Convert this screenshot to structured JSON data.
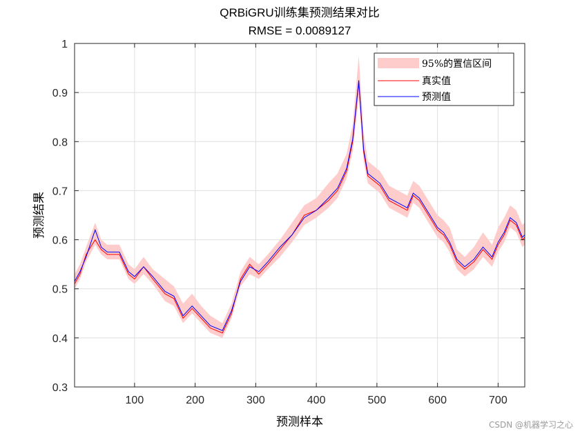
{
  "figure": {
    "title": "QRBiGRU训练集预测结果对比",
    "subtitle": "RMSE = 0.0089127",
    "watermark": "CSDN @机器学习之心"
  },
  "colors": {
    "band": "#ffcccc",
    "truth": "#ff0000",
    "pred": "#0000ff",
    "grid": "#dfdfdf",
    "axis": "#262626"
  },
  "chart_data": {
    "type": "line",
    "title": "QRBiGRU训练集预测结果对比",
    "subtitle": "RMSE = 0.0089127",
    "xlabel": "预测样本",
    "ylabel": "预测结果",
    "xlim": [
      1,
      744
    ],
    "ylim": [
      0.3,
      1.0
    ],
    "xticks": [
      100,
      200,
      300,
      400,
      500,
      600,
      700
    ],
    "xtick_labels": [
      "100",
      "200",
      "300",
      "400",
      "500",
      "600",
      "700"
    ],
    "yticks": [
      0.3,
      0.4,
      0.5,
      0.6,
      0.7,
      0.8,
      0.9,
      1.0
    ],
    "ytick_labels": [
      "0.3",
      "0.4",
      "0.5",
      "0.6",
      "0.7",
      "0.8",
      "0.9",
      "1"
    ],
    "grid": true,
    "legend_position": "top-right",
    "legend": [
      "95%的置信区间",
      "真实值",
      "预测值"
    ],
    "series": [
      {
        "name": "真实值",
        "x": [
          1,
          10,
          20,
          35,
          45,
          55,
          75,
          90,
          100,
          115,
          130,
          150,
          165,
          180,
          195,
          210,
          225,
          245,
          260,
          275,
          290,
          305,
          320,
          340,
          360,
          380,
          400,
          420,
          435,
          450,
          460,
          470,
          478,
          485,
          495,
          505,
          520,
          535,
          550,
          560,
          570,
          585,
          600,
          610,
          620,
          632,
          645,
          660,
          675,
          690,
          700,
          710,
          720,
          730,
          740,
          744
        ],
        "values": [
          0.51,
          0.53,
          0.57,
          0.6,
          0.58,
          0.57,
          0.57,
          0.53,
          0.52,
          0.545,
          0.52,
          0.49,
          0.48,
          0.44,
          0.46,
          0.44,
          0.42,
          0.41,
          0.45,
          0.52,
          0.55,
          0.53,
          0.55,
          0.58,
          0.61,
          0.65,
          0.66,
          0.68,
          0.7,
          0.74,
          0.8,
          0.92,
          0.78,
          0.73,
          0.72,
          0.71,
          0.68,
          0.67,
          0.66,
          0.69,
          0.68,
          0.65,
          0.62,
          0.61,
          0.59,
          0.555,
          0.54,
          0.555,
          0.58,
          0.56,
          0.59,
          0.61,
          0.64,
          0.63,
          0.6,
          0.605
        ]
      },
      {
        "name": "预测值",
        "x": [
          1,
          10,
          20,
          35,
          45,
          55,
          75,
          90,
          100,
          115,
          130,
          150,
          165,
          180,
          195,
          210,
          225,
          245,
          260,
          275,
          290,
          305,
          320,
          340,
          360,
          380,
          400,
          420,
          435,
          450,
          460,
          470,
          478,
          485,
          495,
          505,
          520,
          535,
          550,
          560,
          570,
          585,
          600,
          610,
          620,
          632,
          645,
          660,
          675,
          690,
          700,
          710,
          720,
          730,
          740,
          744
        ],
        "values": [
          0.515,
          0.535,
          0.565,
          0.62,
          0.585,
          0.575,
          0.575,
          0.535,
          0.525,
          0.545,
          0.525,
          0.495,
          0.485,
          0.445,
          0.465,
          0.445,
          0.425,
          0.415,
          0.455,
          0.515,
          0.545,
          0.535,
          0.555,
          0.585,
          0.61,
          0.645,
          0.66,
          0.685,
          0.705,
          0.745,
          0.805,
          0.925,
          0.785,
          0.735,
          0.725,
          0.715,
          0.685,
          0.675,
          0.665,
          0.695,
          0.685,
          0.655,
          0.625,
          0.615,
          0.595,
          0.56,
          0.545,
          0.56,
          0.585,
          0.565,
          0.595,
          0.615,
          0.645,
          0.635,
          0.605,
          0.61
        ]
      }
    ],
    "interval": {
      "name": "95%的置信区间",
      "x": [
        1,
        10,
        20,
        35,
        45,
        55,
        75,
        90,
        100,
        115,
        130,
        150,
        165,
        180,
        195,
        210,
        225,
        245,
        260,
        275,
        290,
        305,
        320,
        340,
        360,
        380,
        400,
        420,
        435,
        450,
        460,
        470,
        478,
        485,
        495,
        505,
        520,
        535,
        550,
        560,
        570,
        585,
        600,
        610,
        620,
        632,
        645,
        660,
        675,
        690,
        700,
        710,
        720,
        730,
        740,
        744
      ],
      "lower": [
        0.5,
        0.52,
        0.555,
        0.59,
        0.57,
        0.56,
        0.56,
        0.52,
        0.51,
        0.53,
        0.51,
        0.475,
        0.465,
        0.43,
        0.45,
        0.43,
        0.41,
        0.4,
        0.44,
        0.505,
        0.53,
        0.52,
        0.54,
        0.565,
        0.595,
        0.63,
        0.645,
        0.665,
        0.685,
        0.725,
        0.78,
        0.89,
        0.76,
        0.715,
        0.705,
        0.695,
        0.665,
        0.655,
        0.645,
        0.675,
        0.665,
        0.635,
        0.605,
        0.595,
        0.575,
        0.54,
        0.525,
        0.54,
        0.565,
        0.545,
        0.575,
        0.595,
        0.625,
        0.615,
        0.585,
        0.59
      ],
      "upper": [
        0.53,
        0.55,
        0.585,
        0.635,
        0.6,
        0.59,
        0.59,
        0.55,
        0.54,
        0.565,
        0.54,
        0.52,
        0.505,
        0.47,
        0.49,
        0.465,
        0.445,
        0.43,
        0.47,
        0.535,
        0.565,
        0.55,
        0.57,
        0.6,
        0.635,
        0.67,
        0.685,
        0.715,
        0.735,
        0.775,
        0.835,
        0.975,
        0.82,
        0.76,
        0.75,
        0.74,
        0.71,
        0.7,
        0.69,
        0.72,
        0.71,
        0.68,
        0.65,
        0.64,
        0.625,
        0.58,
        0.565,
        0.585,
        0.615,
        0.59,
        0.625,
        0.645,
        0.67,
        0.66,
        0.63,
        0.635
      ]
    }
  }
}
